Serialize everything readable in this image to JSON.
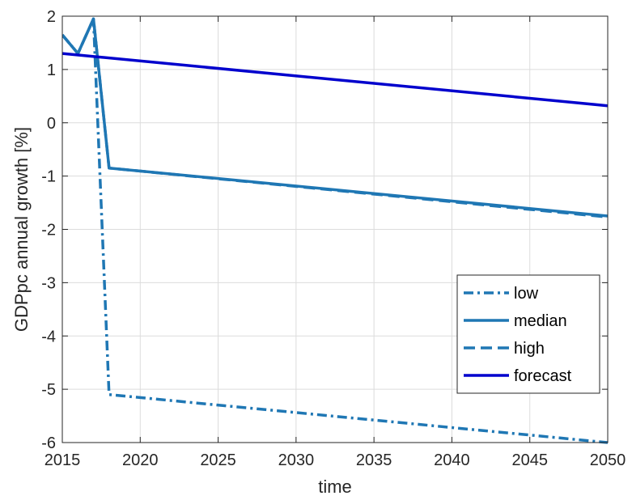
{
  "chart_data": {
    "type": "line",
    "title": "",
    "xlabel": "time",
    "ylabel": "GDPpc annual growth [%]",
    "xlim": [
      2015,
      2050
    ],
    "ylim": [
      -6,
      2
    ],
    "xticks": [
      2015,
      2020,
      2025,
      2030,
      2035,
      2040,
      2045,
      2050
    ],
    "yticks": [
      -6,
      -5,
      -4,
      -3,
      -2,
      -1,
      0,
      1,
      2
    ],
    "grid": true,
    "legend_position": "bottom-right",
    "series": [
      {
        "name": "low",
        "style": "dash-dot",
        "color": "#1f77b4",
        "x": [
          2015,
          2016,
          2017,
          2018,
          2050
        ],
        "y": [
          1.65,
          1.3,
          1.95,
          -5.1,
          -6.0
        ]
      },
      {
        "name": "median",
        "style": "solid",
        "color": "#1f77b4",
        "x": [
          2015,
          2016,
          2017,
          2018,
          2050
        ],
        "y": [
          1.65,
          1.3,
          1.95,
          -0.85,
          -1.75
        ]
      },
      {
        "name": "high",
        "style": "dashed",
        "color": "#1f77b4",
        "x": [
          2015,
          2016,
          2017,
          2018,
          2050
        ],
        "y": [
          1.65,
          1.3,
          1.95,
          -0.85,
          -1.77
        ]
      },
      {
        "name": "forecast",
        "style": "solid",
        "color": "#0000cd",
        "x": [
          2015,
          2050
        ],
        "y": [
          1.3,
          0.32
        ]
      }
    ]
  }
}
